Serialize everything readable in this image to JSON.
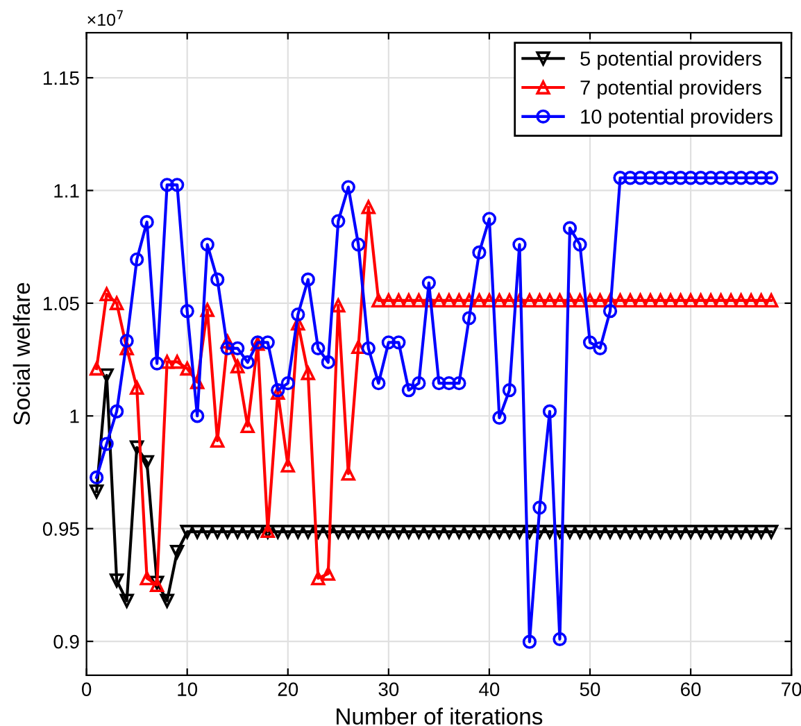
{
  "chart_data": {
    "type": "line",
    "xlabel": "Number of iterations",
    "ylabel": "Social welfare",
    "annotations": [
      "×10$^{7}$"
    ],
    "x": [
      1,
      2,
      3,
      4,
      5,
      6,
      7,
      8,
      9,
      10,
      11,
      12,
      13,
      14,
      15,
      16,
      17,
      18,
      19,
      20,
      21,
      22,
      23,
      24,
      25,
      26,
      27,
      28,
      29,
      30,
      31,
      32,
      33,
      34,
      35,
      36,
      37,
      38,
      39,
      40,
      41,
      42,
      43,
      44,
      45,
      46,
      47,
      48,
      49,
      50,
      51,
      52,
      53,
      54,
      55,
      56,
      57,
      58,
      59,
      60,
      61,
      62,
      63,
      64,
      65,
      66,
      67,
      68
    ],
    "series": [
      {
        "name": "5 potential providers",
        "color": "#000000",
        "marker": "triangle_down",
        "values": [
          0.9665,
          1.018,
          0.927,
          0.918,
          0.986,
          0.9795,
          0.926,
          0.918,
          0.9397,
          0.9486,
          0.9486,
          0.9486,
          0.9486,
          0.9486,
          0.9486,
          0.9486,
          0.9486,
          0.9486,
          0.9486,
          0.9486,
          0.9486,
          0.9486,
          0.9486,
          0.9486,
          0.9486,
          0.9486,
          0.9486,
          0.9486,
          0.9486,
          0.9486,
          0.9486,
          0.9486,
          0.9486,
          0.9486,
          0.9486,
          0.9486,
          0.9486,
          0.9486,
          0.9486,
          0.9486,
          0.9486,
          0.9486,
          0.9486,
          0.9486,
          0.9486,
          0.9486,
          0.9486,
          0.9486,
          0.9486,
          0.9486,
          0.9486,
          0.9486,
          0.9486,
          0.9486,
          0.9486,
          0.9486,
          0.9486,
          0.9486,
          0.9486,
          0.9486,
          0.9486,
          0.9486,
          0.9486,
          0.9486,
          0.9486,
          0.9486,
          0.9486,
          0.9486
        ]
      },
      {
        "name": "7 potential providers",
        "color": "#ff0000",
        "marker": "triangle",
        "values": [
          1.021,
          1.054,
          1.05,
          1.03,
          1.0125,
          0.928,
          0.925,
          1.024,
          1.024,
          1.021,
          1.015,
          1.047,
          0.989,
          1.033,
          1.022,
          0.9955,
          1.032,
          0.949,
          1.0103,
          0.978,
          1.041,
          1.019,
          0.928,
          0.93,
          1.049,
          0.9744,
          1.0306,
          1.0926,
          1.0512,
          1.0512,
          1.0512,
          1.0512,
          1.0512,
          1.0512,
          1.0512,
          1.0512,
          1.0512,
          1.0512,
          1.0512,
          1.0512,
          1.0512,
          1.0512,
          1.0512,
          1.0512,
          1.0512,
          1.0512,
          1.0512,
          1.0512,
          1.0512,
          1.0512,
          1.0512,
          1.0512,
          1.0512,
          1.0512,
          1.0512,
          1.0512,
          1.0512,
          1.0512,
          1.0512,
          1.0512,
          1.0512,
          1.0512,
          1.0512,
          1.0512,
          1.0512,
          1.0512,
          1.0512,
          1.0512
        ]
      },
      {
        "name": "10 potential providers",
        "color": "#0000ff",
        "marker": "circle",
        "values": [
          0.9727,
          0.9876,
          1.002,
          1.0333,
          1.0694,
          1.086,
          1.0233,
          1.1025,
          1.1025,
          1.0465,
          1.0,
          1.076,
          1.0605,
          1.03,
          1.03,
          1.0238,
          1.0326,
          1.0326,
          1.0114,
          1.0145,
          1.045,
          1.0605,
          1.03,
          1.0238,
          1.0864,
          1.1015,
          1.076,
          1.03,
          1.0145,
          1.0326,
          1.0326,
          1.0114,
          1.0145,
          1.059,
          1.0145,
          1.0145,
          1.0145,
          1.0434,
          1.0725,
          1.0874,
          0.9992,
          1.0114,
          1.076,
          0.8998,
          0.9593,
          1.002,
          0.901,
          1.0833,
          1.076,
          1.0326,
          1.03,
          1.0465,
          1.1056,
          1.1056,
          1.1056,
          1.1056,
          1.1056,
          1.1056,
          1.1056,
          1.1056,
          1.1056,
          1.1056,
          1.1056,
          1.1056,
          1.1056,
          1.1056,
          1.1056,
          1.1056
        ]
      }
    ],
    "xlim": [
      0,
      70
    ],
    "xticks": [
      0,
      10,
      20,
      30,
      40,
      50,
      60,
      70
    ],
    "ylim": [
      0.885,
      1.17
    ],
    "yticks": [
      0.9,
      0.95,
      1,
      1.05,
      1.1,
      1.15
    ],
    "grid": true,
    "legend": "top right",
    "line_style": "solid"
  }
}
